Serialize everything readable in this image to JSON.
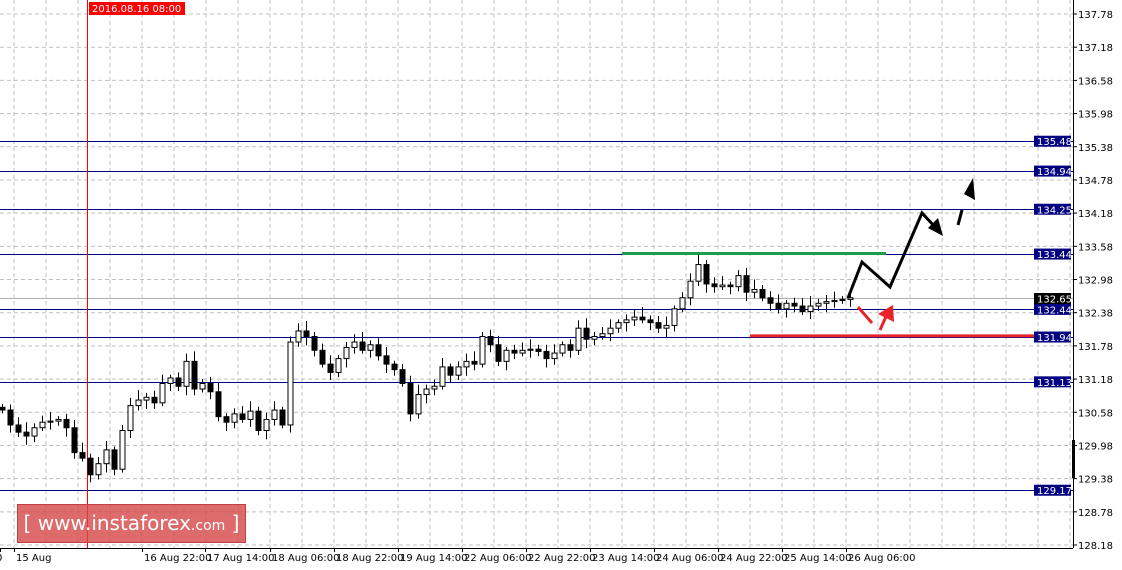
{
  "chart_data": {
    "type": "candlestick",
    "ylim": [
      128.18,
      137.78
    ],
    "y_ticks": [
      "137.78",
      "137.18",
      "136.58",
      "135.98",
      "135.38",
      "134.78",
      "134.18",
      "133.58",
      "132.98",
      "132.38",
      "131.78",
      "131.18",
      "130.58",
      "129.98",
      "129.38",
      "128.78",
      "128.18"
    ],
    "x_ticks": [
      "0",
      "15 Aug",
      "16 Aug 22:00",
      "17 Aug 14:00",
      "18 Aug 06:00",
      "18 Aug 22:00",
      "19 Aug 14:00",
      "22 Aug 06:00",
      "22 Aug 22:00",
      "23 Aug 14:00",
      "24 Aug 06:00",
      "24 Aug 22:00",
      "25 Aug 14:00",
      "26 Aug 06:00"
    ],
    "cursor_time_label": "2016.08.16 08:00",
    "current_price": "132.65",
    "levels": [
      {
        "value": "135.48",
        "color": "#000080"
      },
      {
        "value": "134.94",
        "color": "#000080"
      },
      {
        "value": "134.25",
        "color": "#000080"
      },
      {
        "value": "133.44",
        "color": "#000080"
      },
      {
        "value": "132.44",
        "color": "#000080"
      },
      {
        "value": "131.94",
        "color": "#000080"
      },
      {
        "value": "131.13",
        "color": "#000080"
      },
      {
        "value": "129.17",
        "color": "#000080"
      }
    ],
    "resistance_line": {
      "value": 133.45,
      "color": "#1a9e4a"
    },
    "support_line": {
      "value": 131.96,
      "color": "#e8232a"
    },
    "closes": [
      130.62,
      130.35,
      130.22,
      130.15,
      130.3,
      130.4,
      130.42,
      130.45,
      130.3,
      129.85,
      129.75,
      129.45,
      129.65,
      129.9,
      129.55,
      130.25,
      130.7,
      130.8,
      130.85,
      130.75,
      131.1,
      131.2,
      131.05,
      131.5,
      131.0,
      131.1,
      130.95,
      130.5,
      130.4,
      130.55,
      130.45,
      130.6,
      130.25,
      130.45,
      130.62,
      130.35,
      131.85,
      132.05,
      131.95,
      131.7,
      131.45,
      131.3,
      131.55,
      131.75,
      131.85,
      131.7,
      131.8,
      131.6,
      131.45,
      131.35,
      131.1,
      130.55,
      130.9,
      131.0,
      131.05,
      131.4,
      131.25,
      131.4,
      131.5,
      131.45,
      131.95,
      131.8,
      131.5,
      131.7,
      131.65,
      131.7,
      131.72,
      131.68,
      131.55,
      131.65,
      131.8,
      131.7,
      132.1,
      131.9,
      131.95,
      132.0,
      132.1,
      132.2,
      132.25,
      132.3,
      132.25,
      132.2,
      132.1,
      132.15,
      132.45,
      132.65,
      132.95,
      133.25,
      132.9,
      132.85,
      132.88,
      132.85,
      133.05,
      132.75,
      132.8,
      132.65,
      132.55,
      132.45,
      132.55,
      132.5,
      132.4,
      132.5,
      132.55,
      132.58,
      132.6,
      132.62,
      132.65
    ],
    "forecast": {
      "bullish_path_color": "#000000",
      "pullback_arrow_color": "#e8232a"
    }
  },
  "watermark": {
    "bracket_open": "[",
    "site": "www.instaforex",
    "tld": ".com",
    "bracket_close": "]"
  }
}
